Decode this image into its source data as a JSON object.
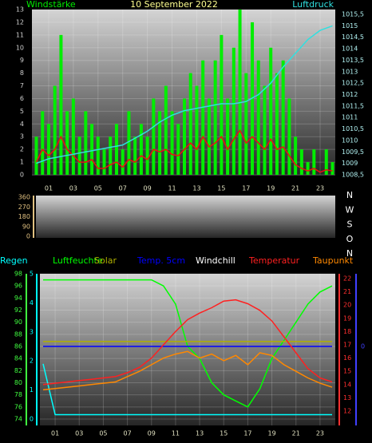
{
  "chart_data": [
    {
      "type": "combo",
      "title": "10 September 2022",
      "ylabel": "Windstärke",
      "y2label": "Luftdruck",
      "x": [
        0,
        0.5,
        1,
        1.5,
        2,
        2.5,
        3,
        3.5,
        4,
        4.5,
        5,
        5.5,
        6,
        6.5,
        7,
        7.5,
        8,
        8.5,
        9,
        9.5,
        10,
        10.5,
        11,
        11.5,
        12,
        12.5,
        13,
        13.5,
        14,
        14.5,
        15,
        15.5,
        16,
        16.5,
        17,
        17.5,
        18,
        18.5,
        19,
        19.5,
        20,
        20.5,
        21,
        21.5,
        22,
        22.5,
        23,
        23.5,
        24
      ],
      "xlim": [
        0,
        24
      ],
      "xticks": [
        {
          "value": 1,
          "label": "01"
        },
        {
          "value": 3,
          "label": "03"
        },
        {
          "value": 5,
          "label": "05"
        },
        {
          "value": 7,
          "label": "07"
        },
        {
          "value": 9,
          "label": "09"
        },
        {
          "value": 11,
          "label": "11"
        },
        {
          "value": 13,
          "label": "13"
        },
        {
          "value": 15,
          "label": "15"
        },
        {
          "value": 17,
          "label": "17"
        },
        {
          "value": 19,
          "label": "19"
        },
        {
          "value": 21,
          "label": "21"
        },
        {
          "value": 23,
          "label": "23"
        }
      ],
      "ylim": [
        0,
        13
      ],
      "yticks": [
        0,
        1,
        2,
        3,
        4,
        5,
        6,
        7,
        8,
        9,
        10,
        11,
        12,
        13
      ],
      "y2lim": [
        1008.5,
        1015.5
      ],
      "y2ticks": [
        {
          "value": 1008.5,
          "label": "1008,5"
        },
        1009,
        {
          "value": 1009.5,
          "label": "1009,5"
        },
        1010,
        {
          "value": 1010.5,
          "label": "1010,5"
        },
        1011,
        {
          "value": 1011.5,
          "label": "1011,5"
        },
        1012,
        {
          "value": 1012.5,
          "label": "1012,5"
        },
        1013,
        {
          "value": 1013.5,
          "label": "1013,5"
        },
        1014,
        {
          "value": 1014.5,
          "label": "1014,5"
        },
        1015,
        {
          "value": 1015.5,
          "label": "1015,5"
        }
      ],
      "grid": true,
      "series": [
        {
          "kind": "bar",
          "color": "#00ee00",
          "values": [
            3,
            5,
            4,
            7,
            11,
            5,
            6,
            3,
            5,
            4,
            3,
            2,
            3,
            4,
            2,
            5,
            3,
            4,
            3,
            6,
            5,
            7,
            5,
            4,
            6,
            8,
            7,
            9,
            6,
            9,
            11,
            6,
            10,
            13,
            8,
            12,
            9,
            7,
            10,
            8,
            9,
            6,
            3,
            2,
            1,
            2,
            0,
            2,
            1
          ]
        },
        {
          "kind": "line",
          "color": "#ee1010",
          "values": [
            1,
            2,
            1.5,
            2,
            3,
            2,
            1.5,
            1,
            1,
            1.2,
            0.5,
            0.5,
            0.8,
            1,
            0.6,
            1.2,
            1,
            1.5,
            1.2,
            2,
            1.8,
            2,
            1.6,
            1.5,
            2,
            2.5,
            2,
            3,
            2.2,
            2.5,
            3,
            2,
            2.8,
            3.5,
            2.5,
            3,
            2.5,
            2,
            2.8,
            2,
            2.2,
            1.5,
            0.8,
            0.5,
            0.3,
            0.5,
            0.2,
            0.4,
            0.3
          ]
        },
        {
          "kind": "line",
          "color": "#30e0e0",
          "axis": "y2",
          "values": [
            1009,
            1009.1,
            1009.2,
            1009.25,
            1009.3,
            1009.35,
            1009.4,
            1009.45,
            1009.5,
            1009.55,
            1009.6,
            1009.65,
            1009.7,
            1009.75,
            1009.8,
            1009.95,
            1010.1,
            1010.25,
            1010.4,
            1010.6,
            1010.8,
            1010.95,
            1011.1,
            1011.2,
            1011.3,
            1011.35,
            1011.4,
            1011.45,
            1011.5,
            1011.55,
            1011.6,
            1011.6,
            1011.6,
            1011.65,
            1011.7,
            1011.85,
            1012,
            1012.25,
            1012.5,
            1012.85,
            1013.2,
            1013.5,
            1013.8,
            1014.1,
            1014.4,
            1014.6,
            1014.8,
            1014.9,
            1015
          ]
        }
      ]
    },
    {
      "type": "direction",
      "ylim": [
        0,
        360
      ],
      "yticks": [
        0,
        90,
        180,
        270,
        360
      ],
      "directions": [
        "N",
        "W",
        "S",
        "O",
        "N"
      ]
    },
    {
      "type": "combo",
      "x": [
        0,
        1,
        2,
        3,
        4,
        5,
        6,
        7,
        8,
        9,
        10,
        11,
        12,
        13,
        14,
        15,
        16,
        17,
        18,
        19,
        20,
        21,
        22,
        23,
        24
      ],
      "xlim": [
        0,
        24
      ],
      "xticks": [
        {
          "value": 1,
          "label": "01"
        },
        {
          "value": 3,
          "label": "03"
        },
        {
          "value": 5,
          "label": "05"
        },
        {
          "value": 7,
          "label": "07"
        },
        {
          "value": 9,
          "label": "09"
        },
        {
          "value": 11,
          "label": "11"
        },
        {
          "value": 13,
          "label": "13"
        },
        {
          "value": 15,
          "label": "15"
        },
        {
          "value": 17,
          "label": "17"
        },
        {
          "value": 19,
          "label": "19"
        },
        {
          "value": 21,
          "label": "21"
        },
        {
          "value": 23,
          "label": "23"
        }
      ],
      "ylim": [
        74,
        98
      ],
      "yticks": [
        74,
        76,
        78,
        80,
        82,
        84,
        86,
        88,
        90,
        92,
        94,
        96,
        98
      ],
      "y2lim": [
        12,
        22
      ],
      "y2ticks": [
        12,
        13,
        14,
        15,
        16,
        17,
        18,
        19,
        20,
        21,
        22
      ],
      "y3lim": [
        0,
        5
      ],
      "y3ticks": [
        0,
        1,
        2,
        3,
        4,
        5
      ],
      "y4lim": [
        -1,
        1
      ],
      "y4ticks": [
        0
      ],
      "grid": true,
      "series": [
        {
          "name": "Regen",
          "color": "#00ffff",
          "axis": "y3",
          "values": [
            1.9,
            0.15,
            0.15,
            0.15,
            0.15,
            0.15,
            0.15,
            0.15,
            0.15,
            0.15,
            0.15,
            0.15,
            0.15,
            0.15,
            0.15,
            0.15,
            0.15,
            0.15,
            0.15,
            0.15,
            0.15,
            0.15,
            0.15,
            0.15,
            0.15
          ]
        },
        {
          "name": "Luftfeuchte",
          "color": "#00ff00",
          "axis": "y",
          "values": [
            97,
            97,
            97,
            97,
            97,
            97,
            97,
            97,
            97,
            97,
            96,
            93,
            86,
            84,
            80,
            78,
            77,
            76,
            79,
            84,
            87,
            90,
            93,
            95,
            96
          ]
        },
        {
          "name": "Solar",
          "color": "#b0b000",
          "axis": "y",
          "values": [
            86.8,
            86.8,
            86.8,
            86.8,
            86.8,
            86.8,
            86.8,
            86.8,
            86.8,
            86.8,
            86.8,
            86.8,
            86.8,
            86.8,
            86.8,
            86.8,
            86.8,
            86.8,
            86.8,
            86.8,
            86.8,
            86.8,
            86.8,
            86.8,
            86.8
          ]
        },
        {
          "name": "Temp. 5cm",
          "color": "#0000ff",
          "axis": "y4",
          "values": [
            0,
            0,
            0,
            0,
            0,
            0,
            0,
            0,
            0,
            0,
            0,
            0,
            0,
            0,
            0,
            0,
            0,
            0,
            0,
            0,
            0,
            0,
            0,
            0,
            0
          ]
        },
        {
          "name": "Windchill",
          "color": "#ffffff",
          "axis": "y2",
          "values": [
            null,
            null,
            null,
            null,
            null,
            null,
            null,
            null,
            null,
            null,
            null,
            null,
            null,
            null,
            null,
            null,
            null,
            null,
            null,
            null,
            null,
            null,
            null,
            null,
            null
          ]
        },
        {
          "name": "Temperatur",
          "color": "#ff2020",
          "axis": "y2",
          "values": [
            14.0,
            14.1,
            14.2,
            14.3,
            14.4,
            14.5,
            14.6,
            14.9,
            15.3,
            16.0,
            17.0,
            18.0,
            18.9,
            19.4,
            19.8,
            20.3,
            20.4,
            20.1,
            19.6,
            18.8,
            17.6,
            16.4,
            15.2,
            14.5,
            14.2
          ]
        },
        {
          "name": "Taupunkt",
          "color": "#ff8800",
          "axis": "y2",
          "values": [
            13.6,
            13.7,
            13.8,
            13.9,
            14.0,
            14.1,
            14.2,
            14.6,
            15.0,
            15.5,
            16.0,
            16.3,
            16.5,
            16.0,
            16.3,
            15.8,
            16.2,
            15.5,
            16.4,
            16.2,
            15.5,
            15.0,
            14.5,
            14.1,
            13.8
          ]
        }
      ]
    }
  ]
}
